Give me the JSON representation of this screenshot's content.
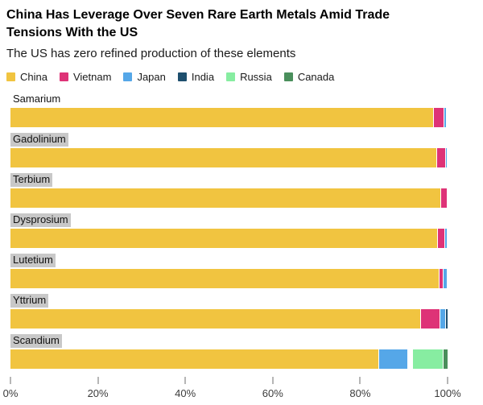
{
  "header": {
    "title_line1": "China Has Leverage Over Seven Rare Earth Metals Amid Trade",
    "title_line2": "Tensions With the US",
    "subtitle": "The US has zero refined production of these elements"
  },
  "legend": {
    "items": [
      "China",
      "Vietnam",
      "Japan",
      "India",
      "Russia",
      "Canada"
    ]
  },
  "colors": {
    "China": "#F1C440",
    "Vietnam": "#DE3377",
    "Japan": "#55A7E8",
    "India": "#1E4F6E",
    "Russia": "#87EDA1",
    "Canada": "#4A8F5C",
    "Other": "#FFFFFF"
  },
  "chart_data": {
    "type": "bar",
    "orientation": "horizontal",
    "stacked": true,
    "title": "China Has Leverage Over Seven Rare Earth Metals Amid Trade Tensions With the US",
    "subtitle": "The US has zero refined production of these elements",
    "unit": "% share of refined production",
    "xlim": [
      0,
      100
    ],
    "x_tick_values": [
      0,
      20,
      40,
      60,
      80,
      100
    ],
    "x_tick_labels": [
      "0%",
      "20%",
      "40%",
      "60%",
      "80%",
      "100%"
    ],
    "legend_position": "top",
    "categories": [
      "Samarium",
      "Gadolinium",
      "Terbium",
      "Dysprosium",
      "Lutetium",
      "Yttrium",
      "Scandium"
    ],
    "label_background_categories": [
      "Gadolinium",
      "Terbium",
      "Dysprosium",
      "Lutetium",
      "Yttrium",
      "Scandium"
    ],
    "stack_order": [
      "China",
      "Vietnam",
      "Japan",
      "India",
      "Other",
      "Russia",
      "Canada"
    ],
    "series": [
      {
        "name": "China",
        "values": [
          96.8,
          97.6,
          98.4,
          97.7,
          98.0,
          93.8,
          84.5
        ]
      },
      {
        "name": "Vietnam",
        "values": [
          2.2,
          1.8,
          1.4,
          1.5,
          0.9,
          4.4,
          0
        ]
      },
      {
        "name": "Japan",
        "values": [
          0.5,
          0.4,
          0,
          0.5,
          0.8,
          1.1,
          6.6
        ]
      },
      {
        "name": "India",
        "values": [
          0,
          0,
          0,
          0,
          0,
          0.5,
          0
        ]
      },
      {
        "name": "Other",
        "values": [
          0,
          0,
          0,
          0,
          0,
          0,
          0.9
        ]
      },
      {
        "name": "Russia",
        "values": [
          0,
          0,
          0,
          0,
          0,
          0,
          7.0
        ]
      },
      {
        "name": "Canada",
        "values": [
          0,
          0,
          0,
          0,
          0,
          0,
          1.0
        ]
      }
    ]
  }
}
